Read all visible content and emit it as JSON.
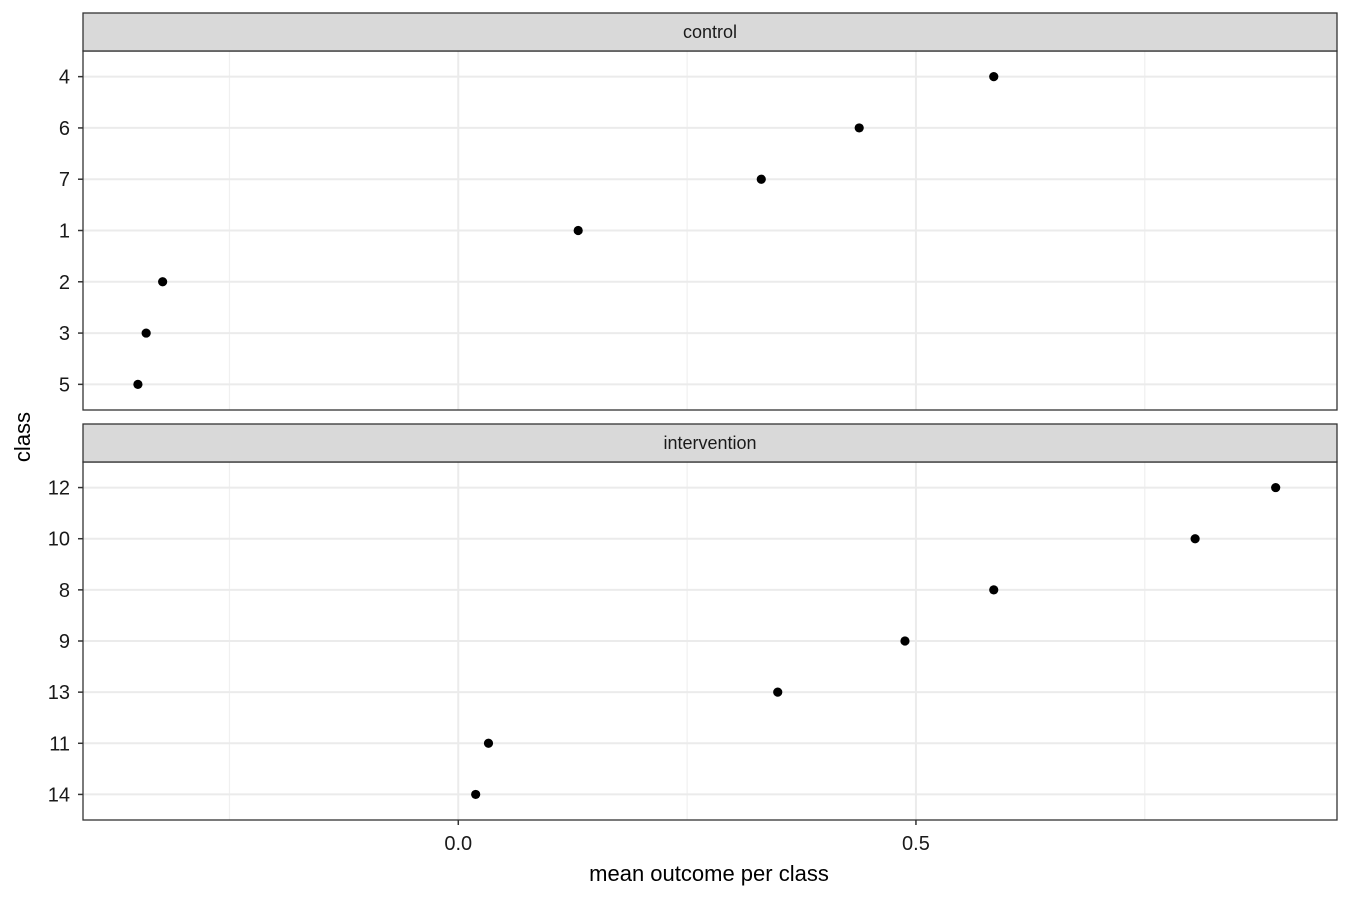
{
  "chart_data": {
    "type": "scatter",
    "xlabel": "mean outcome per class",
    "ylabel": "class",
    "xlim": [
      -0.41,
      0.96
    ],
    "x_ticks": [
      0.0,
      0.5
    ],
    "x_tick_labels": [
      "0.0",
      "0.5"
    ],
    "x_minor_ticks": [
      -0.25,
      0.25,
      0.75
    ],
    "grid": true,
    "theme": "bw",
    "point_color": "#000000",
    "panels": [
      {
        "name": "control",
        "classes": [
          "4",
          "6",
          "7",
          "1",
          "2",
          "3",
          "5"
        ],
        "values": [
          0.585,
          0.438,
          0.331,
          0.131,
          -0.323,
          -0.341,
          -0.35
        ]
      },
      {
        "name": "intervention",
        "classes": [
          "12",
          "10",
          "8",
          "9",
          "13",
          "11",
          "14"
        ],
        "values": [
          0.893,
          0.805,
          0.585,
          0.488,
          0.349,
          0.033,
          0.019
        ]
      }
    ]
  }
}
